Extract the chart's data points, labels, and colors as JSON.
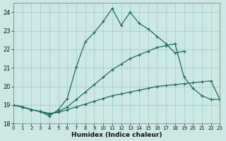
{
  "xlabel": "Humidex (Indice chaleur)",
  "bg_color": "#cce8e4",
  "line_color": "#1a6b5a",
  "grid_color": "#a8d4ce",
  "xlim": [
    0,
    23
  ],
  "ylim": [
    18,
    24.5
  ],
  "yticks": [
    18,
    19,
    20,
    21,
    22,
    23,
    24
  ],
  "xticks": [
    0,
    1,
    2,
    3,
    4,
    5,
    6,
    7,
    8,
    9,
    10,
    11,
    12,
    13,
    14,
    15,
    16,
    17,
    18,
    19,
    20,
    21,
    22,
    23
  ],
  "line1_x": [
    0,
    1,
    2,
    3,
    4,
    5,
    6,
    7,
    8,
    9,
    10,
    11,
    12,
    13,
    14,
    15,
    16,
    17,
    18,
    19,
    20,
    21,
    22,
    23
  ],
  "line1_y": [
    19.0,
    18.9,
    18.75,
    18.65,
    18.55,
    18.6,
    18.75,
    18.9,
    19.05,
    19.2,
    19.35,
    19.5,
    19.6,
    19.7,
    19.8,
    19.9,
    20.0,
    20.05,
    20.1,
    20.15,
    20.2,
    20.25,
    20.3,
    19.3
  ],
  "line2_x": [
    0,
    1,
    2,
    3,
    4,
    5,
    6,
    7,
    8,
    9,
    10,
    11,
    12,
    13,
    14,
    15,
    16,
    17,
    18,
    19,
    20,
    21,
    22,
    23
  ],
  "line2_y": [
    19.0,
    18.9,
    18.75,
    18.65,
    18.5,
    18.65,
    18.9,
    19.3,
    19.7,
    20.1,
    20.5,
    20.9,
    21.2,
    21.5,
    21.7,
    21.9,
    22.1,
    22.2,
    22.3,
    20.5,
    19.9,
    19.5,
    19.3,
    19.3
  ],
  "line3_x": [
    0,
    1,
    2,
    3,
    4,
    5,
    6,
    7,
    8,
    9,
    10,
    11,
    12,
    13,
    14,
    15,
    16,
    17,
    18,
    19
  ],
  "line3_y": [
    19.0,
    18.9,
    18.75,
    18.65,
    18.4,
    18.75,
    19.35,
    21.05,
    22.4,
    22.9,
    23.5,
    24.2,
    23.3,
    24.0,
    23.4,
    23.1,
    22.7,
    22.3,
    21.8,
    21.9
  ]
}
